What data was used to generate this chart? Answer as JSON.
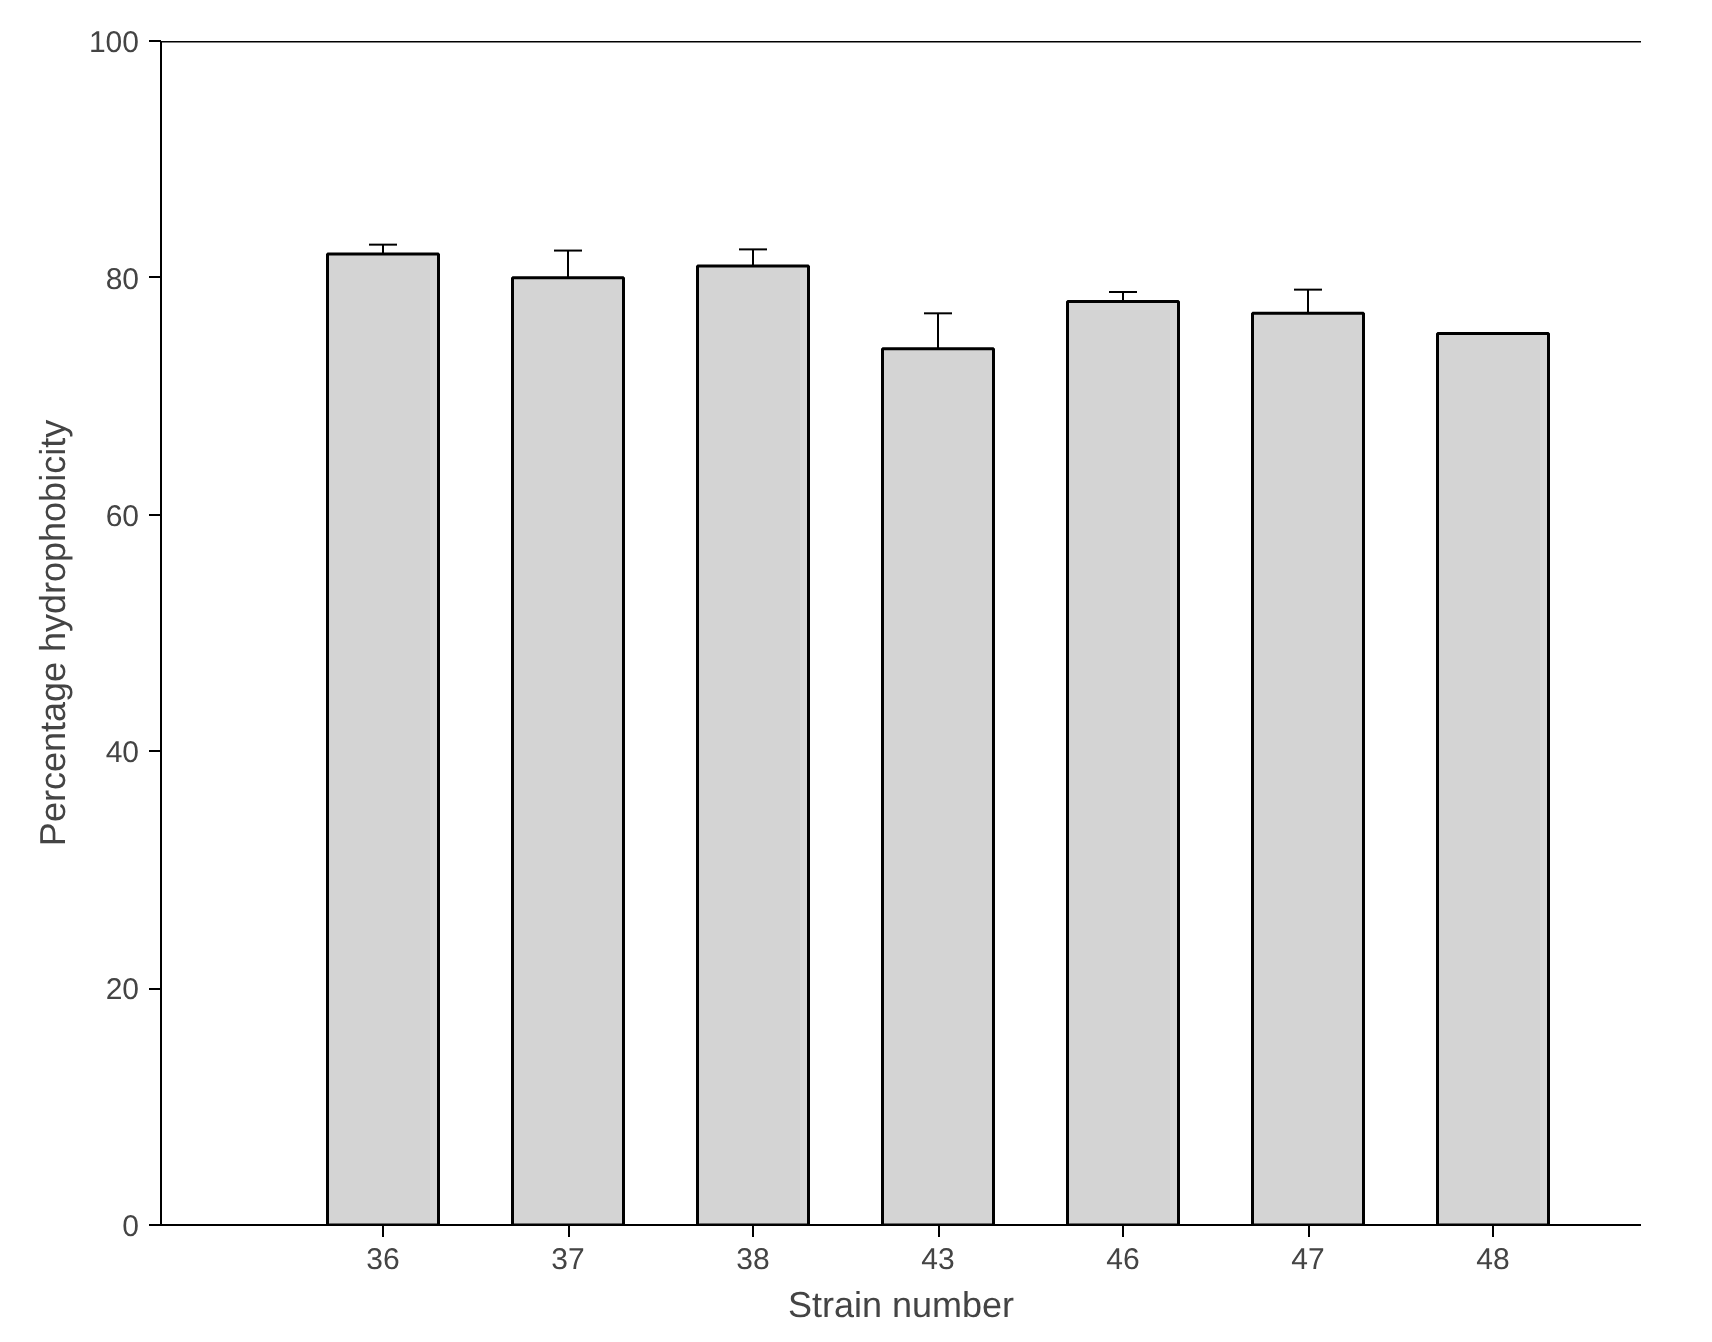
{
  "chart_data": {
    "type": "bar",
    "xlabel": "Strain number",
    "ylabel": "Percentage hydrophobicity",
    "categories": [
      "36",
      "37",
      "38",
      "43",
      "46",
      "47",
      "48"
    ],
    "values": [
      82,
      80,
      81,
      74,
      78,
      77,
      75.3
    ],
    "errors": [
      0.8,
      2.3,
      1.4,
      3,
      0.8,
      2,
      null
    ],
    "color": "#d4d4d4",
    "ylim": [
      0,
      100
    ],
    "yticks": [
      0,
      20,
      40,
      60,
      80,
      100
    ],
    "grid": false
  }
}
